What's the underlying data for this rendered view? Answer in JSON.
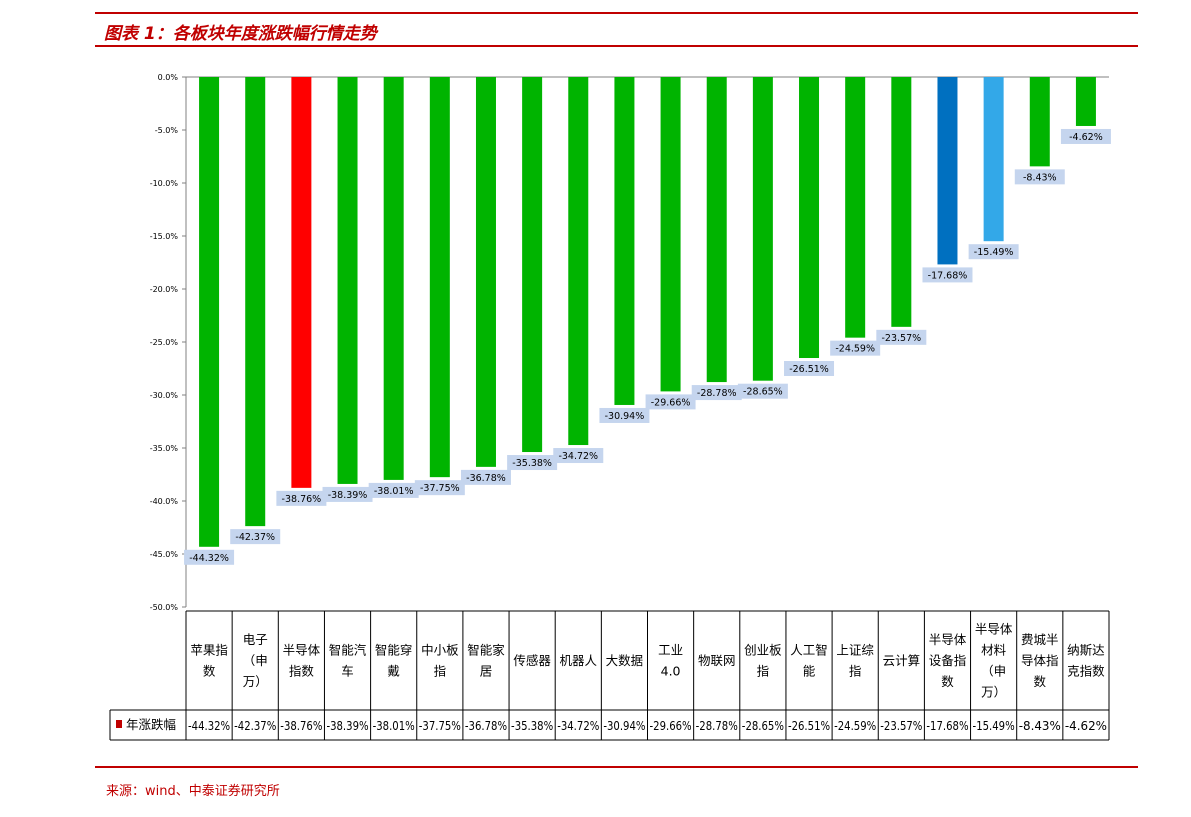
{
  "header": {
    "title": "图表 1：各板块年度涨跌幅行情走势"
  },
  "footer": {
    "source": "来源：wind、中泰证券研究所"
  },
  "colors": {
    "accent": "#c00000",
    "green": "#00b400",
    "red": "#ff0000",
    "blue": "#0070c0",
    "light_blue": "#33a8e8",
    "label_bg": "#c5d5ee"
  },
  "chart_data": {
    "type": "bar",
    "title": "",
    "xlabel": "",
    "ylabel": "",
    "ylim": [
      -50,
      0
    ],
    "yticks": [
      "0.0%",
      "-5.0%",
      "-10.0%",
      "-15.0%",
      "-20.0%",
      "-25.0%",
      "-30.0%",
      "-35.0%",
      "-40.0%",
      "-45.0%",
      "-50.0%"
    ],
    "categories": [
      [
        "苹果指",
        "数"
      ],
      [
        "电子",
        "（申",
        "万）"
      ],
      [
        "半导体",
        "指数"
      ],
      [
        "智能汽",
        "车"
      ],
      [
        "智能穿",
        "戴"
      ],
      [
        "中小板",
        "指"
      ],
      [
        "智能家",
        "居"
      ],
      [
        "传感器"
      ],
      [
        "机器人"
      ],
      [
        "大数据"
      ],
      [
        "工业",
        "4.0"
      ],
      [
        "物联网"
      ],
      [
        "创业板",
        "指"
      ],
      [
        "人工智",
        "能"
      ],
      [
        "上证综",
        "指"
      ],
      [
        "云计算"
      ],
      [
        "半导体",
        "设备指",
        "数"
      ],
      [
        "半导体",
        "材料",
        "（申",
        "万）"
      ],
      [
        "费城半",
        "导体指",
        "数"
      ],
      [
        "纳斯达",
        "克指数"
      ]
    ],
    "series": [
      {
        "name": "年涨跌幅",
        "values": [
          -44.32,
          -42.37,
          -38.76,
          -38.39,
          -38.01,
          -37.75,
          -36.78,
          -35.38,
          -34.72,
          -30.94,
          -29.66,
          -28.78,
          -28.65,
          -26.51,
          -24.59,
          -23.57,
          -17.68,
          -15.49,
          -8.43,
          -4.62
        ],
        "labels": [
          "-44.32%",
          "-42.37%",
          "-38.76%",
          "-38.39%",
          "-38.01%",
          "-37.75%",
          "-36.78%",
          "-35.38%",
          "-34.72%",
          "-30.94%",
          "-29.66%",
          "-28.78%",
          "-28.65%",
          "-26.51%",
          "-24.59%",
          "-23.57%",
          "-17.68%",
          "-15.49%",
          "-8.43%",
          "-4.62%"
        ],
        "colors": [
          "green",
          "green",
          "red",
          "green",
          "green",
          "green",
          "green",
          "green",
          "green",
          "green",
          "green",
          "green",
          "green",
          "green",
          "green",
          "green",
          "blue",
          "light_blue",
          "green",
          "green"
        ]
      }
    ],
    "grid": false,
    "legend": "bottom-left"
  }
}
